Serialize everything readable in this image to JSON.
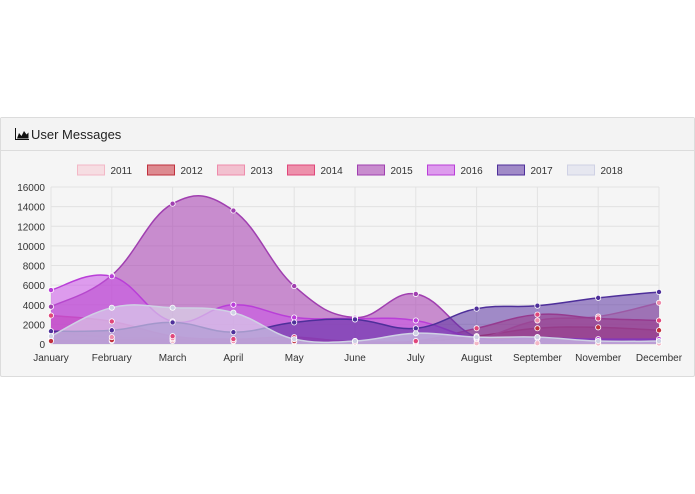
{
  "panel": {
    "title": "User Messages",
    "icon": "area-chart-icon"
  },
  "chart_data": {
    "type": "area",
    "title": "",
    "xlabel": "",
    "ylabel": "",
    "ylim": [
      0,
      16000
    ],
    "yticks": [
      0,
      2000,
      4000,
      6000,
      8000,
      10000,
      12000,
      14000,
      16000
    ],
    "grid": true,
    "legend": "top-center",
    "categories": [
      "January",
      "February",
      "March",
      "April",
      "May",
      "June",
      "July",
      "August",
      "September",
      "November",
      "December"
    ],
    "series": [
      {
        "name": "2011",
        "fill": "rgba(246,200,210,0.55)",
        "stroke": "#f3b8c6",
        "values": [
          400,
          300,
          300,
          250,
          200,
          150,
          100,
          80,
          80,
          60,
          60
        ]
      },
      {
        "name": "2012",
        "fill": "rgba(200,50,60,0.55)",
        "stroke": "#c0303d",
        "values": [
          300,
          400,
          500,
          400,
          300,
          200,
          200,
          800,
          1600,
          1700,
          1400
        ]
      },
      {
        "name": "2013",
        "fill": "rgba(240,140,170,0.5)",
        "stroke": "#ee8bab",
        "values": [
          1200,
          700,
          600,
          300,
          500,
          300,
          200,
          500,
          2400,
          2800,
          4200
        ]
      },
      {
        "name": "2014",
        "fill": "rgba(230,60,110,0.55)",
        "stroke": "#e0467a",
        "values": [
          2900,
          2300,
          800,
          500,
          700,
          200,
          300,
          1600,
          3000,
          2600,
          2400
        ]
      },
      {
        "name": "2015",
        "fill": "rgba(170,70,180,0.6)",
        "stroke": "#a03fb0",
        "values": [
          3800,
          7000,
          14300,
          13600,
          5900,
          2700,
          5100,
          700,
          700,
          400,
          400
        ]
      },
      {
        "name": "2016",
        "fill": "rgba(200,80,230,0.55)",
        "stroke": "#b93ed8",
        "values": [
          5500,
          6900,
          2300,
          4000,
          2700,
          2600,
          2400,
          600,
          600,
          500,
          500
        ]
      },
      {
        "name": "2017",
        "fill": "rgba(90,50,160,0.55)",
        "stroke": "#4e2f9a",
        "values": [
          1300,
          1400,
          2200,
          1200,
          2200,
          2500,
          1600,
          3600,
          3900,
          4700,
          5300
        ]
      },
      {
        "name": "2018",
        "fill": "rgba(220,222,236,0.6)",
        "stroke": "#cfd1e4",
        "values": [
          800,
          3700,
          3700,
          3200,
          500,
          300,
          1100,
          700,
          700,
          300,
          300
        ]
      }
    ]
  }
}
